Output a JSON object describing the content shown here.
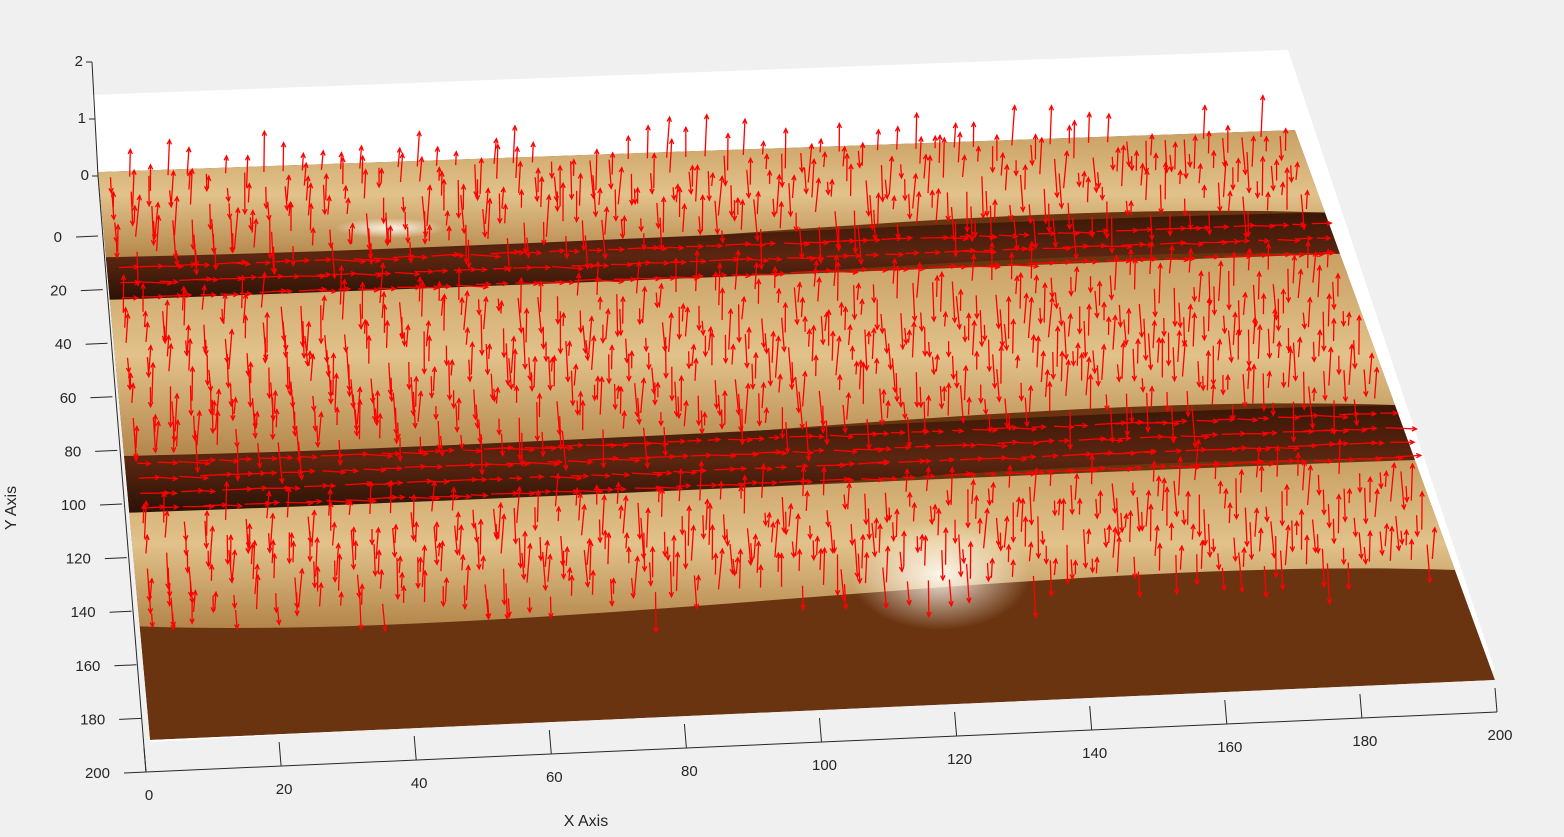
{
  "chart_data": {
    "type": "3d-surface-quiver",
    "xlabel": "X Axis",
    "ylabel": "Y Axis",
    "zlabel": "",
    "xlim": [
      0,
      200
    ],
    "ylim": [
      0,
      200
    ],
    "zlim": [
      0,
      2
    ],
    "x_ticks": [
      "0",
      "20",
      "40",
      "60",
      "80",
      "100",
      "120",
      "140",
      "160",
      "180",
      "200"
    ],
    "y_ticks": [
      "0",
      "20",
      "40",
      "60",
      "80",
      "100",
      "120",
      "140",
      "160",
      "180",
      "200"
    ],
    "z_ticks": [
      "0",
      "1",
      "2"
    ],
    "surface_colormap": "copper",
    "quiver_color": "#ff0000",
    "grid": false,
    "bands": [
      {
        "region": "tissue",
        "y_range": [
          0,
          30
        ]
      },
      {
        "region": "channel",
        "y_range": [
          30,
          45
        ]
      },
      {
        "region": "tissue",
        "y_range": [
          45,
          100
        ]
      },
      {
        "region": "channel",
        "y_range": [
          100,
          120
        ]
      },
      {
        "region": "tissue",
        "y_range": [
          120,
          160
        ]
      }
    ]
  },
  "colors": {
    "background": "#f0f0f0",
    "axes_face": "#ffffff",
    "axis_line": "#262626",
    "quiver": "#ff0000",
    "surface_dark": "#2a1206",
    "surface_light": "#d9b878",
    "surface_highlight": "#fff6e6"
  }
}
